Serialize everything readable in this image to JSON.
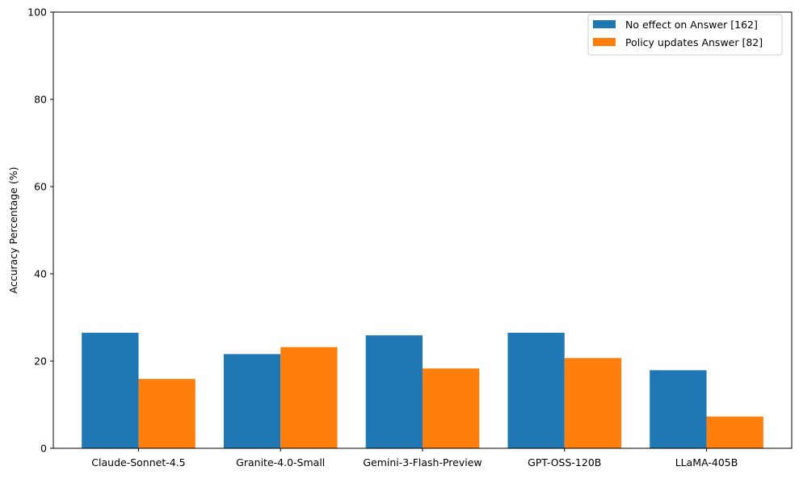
{
  "chart_data": {
    "type": "bar",
    "title": "",
    "xlabel": "",
    "ylabel": "Accuracy Percentage (%)",
    "ylim": [
      0,
      100
    ],
    "yticks": [
      0,
      20,
      40,
      60,
      80,
      100
    ],
    "grid": false,
    "legend_position": "top-right",
    "categories": [
      "Claude-Sonnet-4.5",
      "Granite-4.0-Small",
      "Gemini-3-Flash-Preview",
      "GPT-OSS-120B",
      "LLaMA-405B"
    ],
    "series": [
      {
        "name": "No effect on Answer [162]",
        "color": "#1f77b4",
        "values": [
          26.5,
          21.6,
          25.9,
          26.5,
          17.9
        ]
      },
      {
        "name": "Policy updates Answer [82]",
        "color": "#ff7f0e",
        "values": [
          15.9,
          23.2,
          18.3,
          20.7,
          7.3
        ]
      }
    ]
  }
}
